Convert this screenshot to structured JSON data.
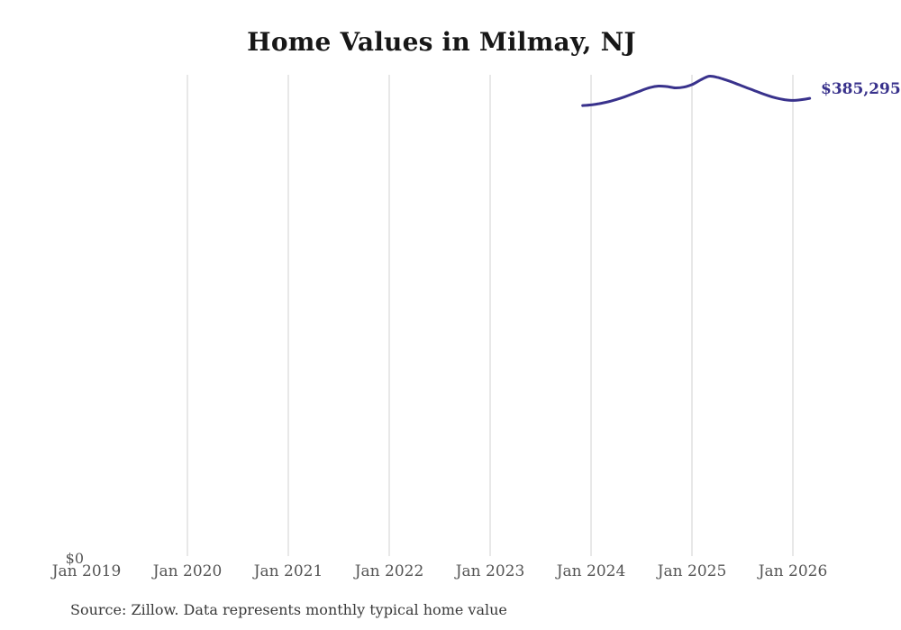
{
  "title": "Home Values in Milmay, NJ",
  "source_note": "Source: Zillow. Data represents monthly typical home value",
  "end_label": "$385,295",
  "y_axis": {
    "zero_label": "$0"
  },
  "x_axis": {
    "ticks": [
      {
        "label": "Jan 2019",
        "month": "2019-01",
        "gridline": false
      },
      {
        "label": "Jan 2020",
        "month": "2020-01",
        "gridline": true
      },
      {
        "label": "Jan 2021",
        "month": "2021-01",
        "gridline": true
      },
      {
        "label": "Jan 2022",
        "month": "2022-01",
        "gridline": true
      },
      {
        "label": "Jan 2023",
        "month": "2023-01",
        "gridline": true
      },
      {
        "label": "Jan 2024",
        "month": "2024-01",
        "gridline": true
      },
      {
        "label": "Jan 2025",
        "month": "2025-01",
        "gridline": true
      },
      {
        "label": "Jan 2026",
        "month": "2026-01",
        "gridline": true
      }
    ]
  },
  "colors": {
    "line": "#39328c",
    "end_label": "#39328c",
    "grid": "#d9d9d9",
    "axis_text": "#555555",
    "title_text": "#171717",
    "source_text": "#3a3a3a",
    "background": "#ffffff"
  },
  "chart_data": {
    "type": "line",
    "title": "Home Values in Milmay, NJ",
    "series_name": "Monthly typical home value (USD)",
    "xlabel": "",
    "ylabel": "",
    "ylim": [
      0,
      405000
    ],
    "grid": "vertical-only",
    "legend": "none",
    "end_annotation": "$385,295",
    "x": [
      "2023-12",
      "2024-01",
      "2024-02",
      "2024-03",
      "2024-04",
      "2024-05",
      "2024-06",
      "2024-07",
      "2024-08",
      "2024-09",
      "2024-10",
      "2024-11",
      "2024-12",
      "2025-01",
      "2025-02",
      "2025-03",
      "2025-04",
      "2025-05",
      "2025-06",
      "2025-07",
      "2025-08",
      "2025-09",
      "2025-10",
      "2025-11",
      "2025-12",
      "2026-01",
      "2026-02",
      "2026-03"
    ],
    "values": [
      379300,
      379800,
      380900,
      382400,
      384300,
      386600,
      389200,
      391900,
      394300,
      395600,
      395200,
      394100,
      394700,
      396800,
      400600,
      403800,
      402900,
      400800,
      398300,
      395600,
      392900,
      390200,
      387700,
      385600,
      384200,
      383600,
      384200,
      385295
    ]
  }
}
